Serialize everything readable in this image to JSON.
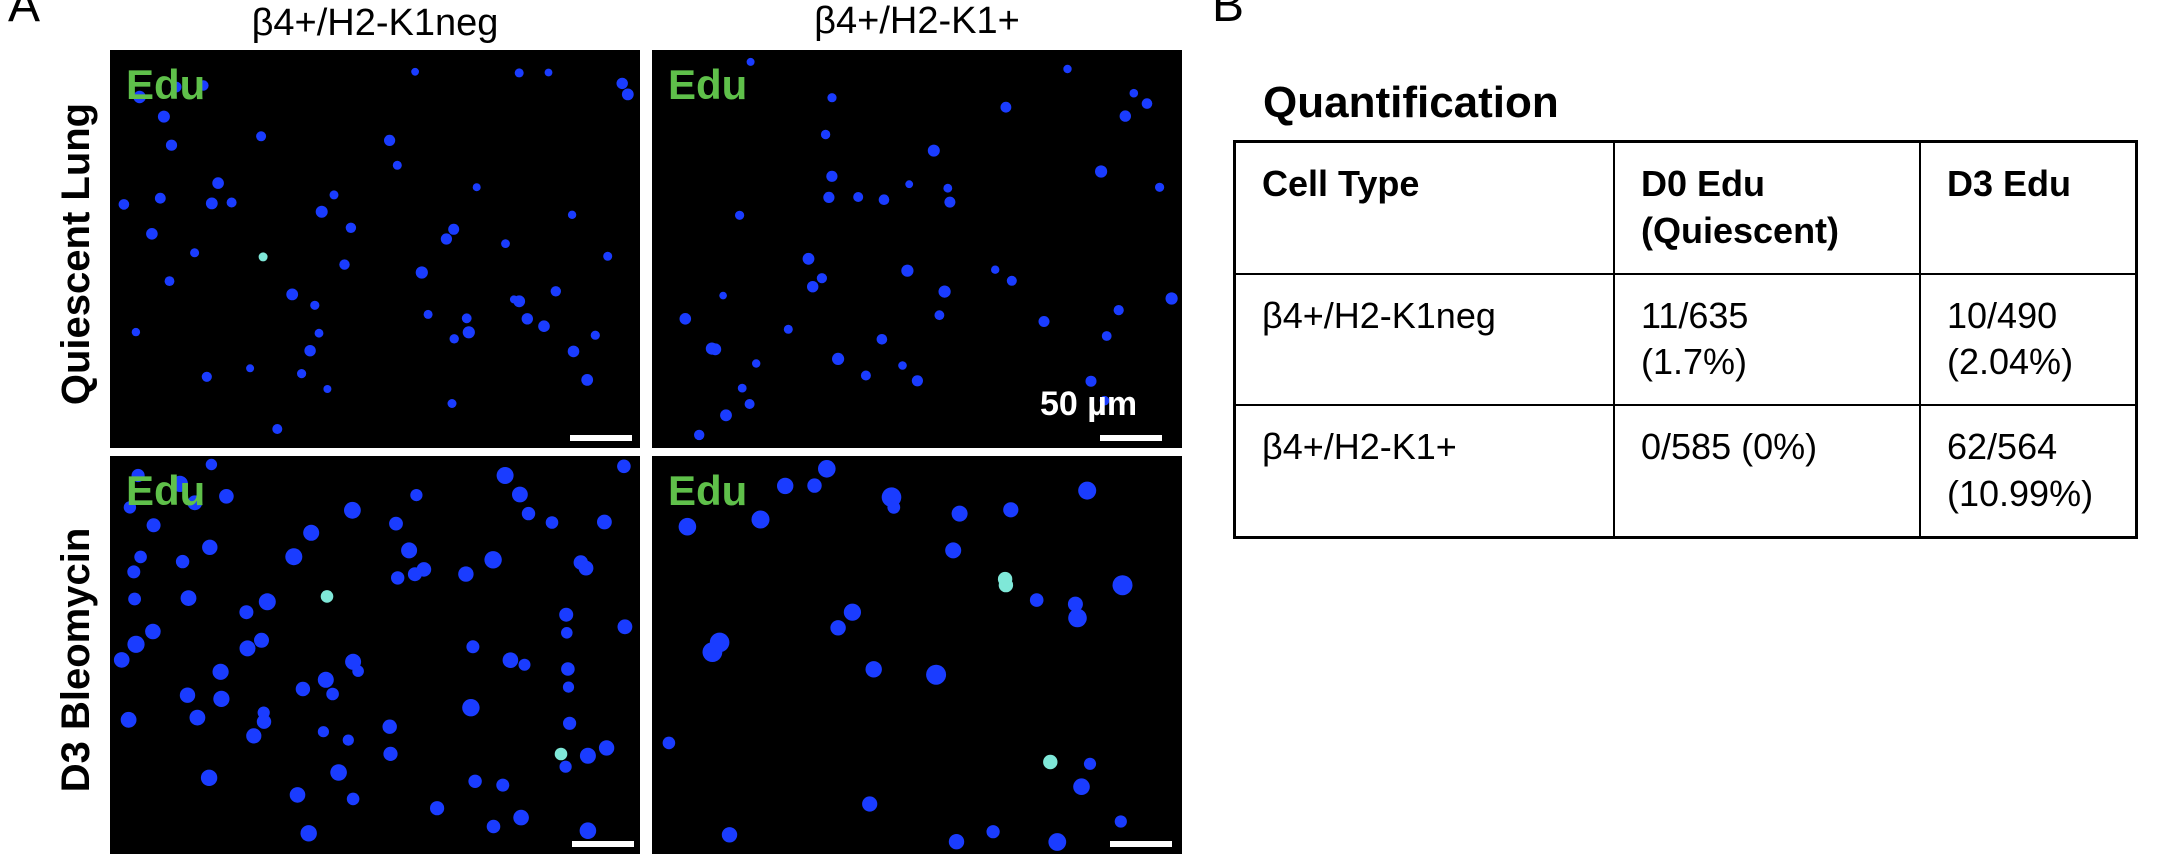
{
  "panel_a": {
    "letter": "A",
    "column_headers": [
      "β4+/H2-K1neg",
      "β4+/H2-K1+"
    ],
    "row_headers": [
      "Quiescent Lung",
      "D3 Bleomycin"
    ],
    "stain_label": "Edu",
    "scale_label": "50 µm",
    "colors": {
      "nuclei": "#1a3cff",
      "edu_positive": "#7fe8d8",
      "stain_text": "#5fc04a"
    }
  },
  "panel_b": {
    "letter": "B",
    "title": "Quantification",
    "table": {
      "headers": [
        {
          "line1": "Cell Type",
          "line2": ""
        },
        {
          "line1": "D0 Edu",
          "line2": "(Quiescent)"
        },
        {
          "line1": "D3 Edu",
          "line2": ""
        }
      ],
      "rows": [
        {
          "cell_type": "β4+/H2-K1neg",
          "d0_line1": "11/635",
          "d0_line2": "(1.7%)",
          "d3_line1": "10/490",
          "d3_line2": "(2.04%)"
        },
        {
          "cell_type": "β4+/H2-K1+",
          "d0_line1": "0/585 (0%)",
          "d0_line2": "",
          "d3_line1": "62/564",
          "d3_line2": "(10.99%)"
        }
      ]
    }
  }
}
